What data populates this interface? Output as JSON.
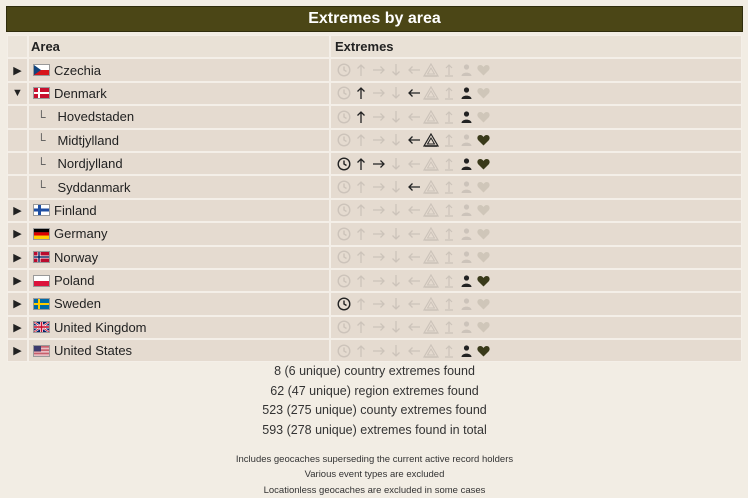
{
  "title": "Extremes by area",
  "headers": {
    "area": "Area",
    "extremes": "Extremes"
  },
  "icon_names": [
    "clock-icon",
    "arrow-north-icon",
    "arrow-east-icon",
    "arrow-south-icon",
    "arrow-west-icon",
    "triangle-height-icon",
    "ascent-icon",
    "person-icon",
    "heart-icon"
  ],
  "rows": [
    {
      "name": "Czechia",
      "flag": "cz",
      "toggle": "collapsed",
      "level": 0,
      "active": [
        false,
        false,
        false,
        false,
        false,
        false,
        false,
        false,
        false
      ]
    },
    {
      "name": "Denmark",
      "flag": "dk",
      "toggle": "expanded",
      "level": 0,
      "active": [
        false,
        true,
        false,
        false,
        true,
        false,
        false,
        true,
        false
      ]
    },
    {
      "name": "Hovedstaden",
      "flag": "",
      "toggle": "none",
      "level": 1,
      "active": [
        false,
        true,
        false,
        false,
        false,
        false,
        false,
        true,
        false
      ]
    },
    {
      "name": "Midtjylland",
      "flag": "",
      "toggle": "none",
      "level": 1,
      "active": [
        false,
        false,
        false,
        false,
        true,
        true,
        false,
        false,
        true
      ]
    },
    {
      "name": "Nordjylland",
      "flag": "",
      "toggle": "none",
      "level": 1,
      "active": [
        true,
        true,
        true,
        false,
        false,
        false,
        false,
        true,
        true
      ]
    },
    {
      "name": "Syddanmark",
      "flag": "",
      "toggle": "none",
      "level": 1,
      "active": [
        false,
        false,
        false,
        false,
        true,
        false,
        false,
        false,
        false
      ]
    },
    {
      "name": "Finland",
      "flag": "fi",
      "toggle": "collapsed",
      "level": 0,
      "active": [
        false,
        false,
        false,
        false,
        false,
        false,
        false,
        false,
        false
      ]
    },
    {
      "name": "Germany",
      "flag": "de",
      "toggle": "collapsed",
      "level": 0,
      "active": [
        false,
        false,
        false,
        false,
        false,
        false,
        false,
        false,
        false
      ]
    },
    {
      "name": "Norway",
      "flag": "no",
      "toggle": "collapsed",
      "level": 0,
      "active": [
        false,
        false,
        false,
        false,
        false,
        false,
        false,
        false,
        false
      ]
    },
    {
      "name": "Poland",
      "flag": "pl",
      "toggle": "collapsed",
      "level": 0,
      "active": [
        false,
        false,
        false,
        false,
        false,
        false,
        false,
        true,
        true
      ]
    },
    {
      "name": "Sweden",
      "flag": "se",
      "toggle": "collapsed",
      "level": 0,
      "active": [
        true,
        false,
        false,
        false,
        false,
        false,
        false,
        false,
        false
      ]
    },
    {
      "name": "United Kingdom",
      "flag": "gb",
      "toggle": "collapsed",
      "level": 0,
      "active": [
        false,
        false,
        false,
        false,
        false,
        false,
        false,
        false,
        false
      ]
    },
    {
      "name": "United States",
      "flag": "us",
      "toggle": "collapsed",
      "level": 0,
      "active": [
        false,
        false,
        false,
        false,
        false,
        false,
        false,
        true,
        true
      ]
    }
  ],
  "stats": [
    "8 (6 unique) country extremes found",
    "62 (47 unique) region extremes found",
    "523 (275 unique) county extremes found",
    "593 (278 unique) extremes found in total"
  ],
  "notes": [
    "Includes geocaches superseding the current active record holders",
    "Various event types are excluded",
    "Locationless geocaches are excluded in some cases"
  ],
  "colors": {
    "title_bg": "#4b4616",
    "row_bg": "#e5dbd0",
    "page_bg": "#f2ede4"
  }
}
